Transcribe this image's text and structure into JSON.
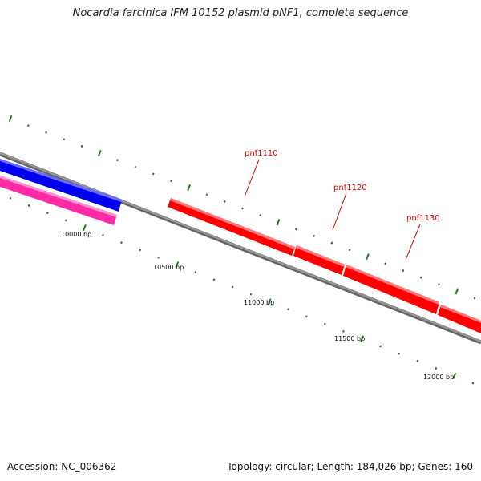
{
  "title": "Nocardia farcinica IFM 10152 plasmid pNF1, complete sequence",
  "footer": {
    "accession": "Accession: NC_006362",
    "summary": "Topology: circular; Length: 184,026 bp; Genes: 160"
  },
  "bp_labels": [
    "10000 bp",
    "10500 bp",
    "11000 bp",
    "11500 bp",
    "12000 bp"
  ],
  "gene_labels": [
    "pnf1110",
    "pnf1120",
    "pnf1130"
  ],
  "colors": {
    "backbone": "#888888",
    "tick": "#1a7a1a",
    "gene_forward": "#ff0000",
    "gene_blue": "#0000ee",
    "gene_pink": "#ff2aa6",
    "gene_label": "#dd0000"
  }
}
